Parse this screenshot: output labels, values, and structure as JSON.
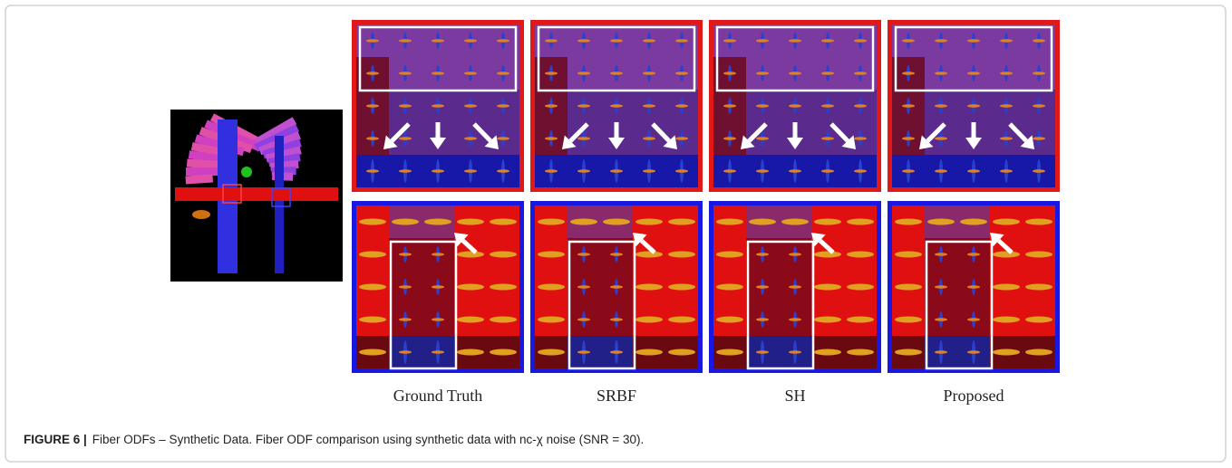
{
  "figure": {
    "column_labels": [
      "Ground Truth",
      "SRBF",
      "SH",
      "Proposed"
    ],
    "caption": {
      "label": "FIGURE 6 |",
      "text": "Fiber ODFs – Synthetic Data. Fiber ODF comparison using synthetic data with nc-χ noise (SNR = 30)."
    }
  }
}
